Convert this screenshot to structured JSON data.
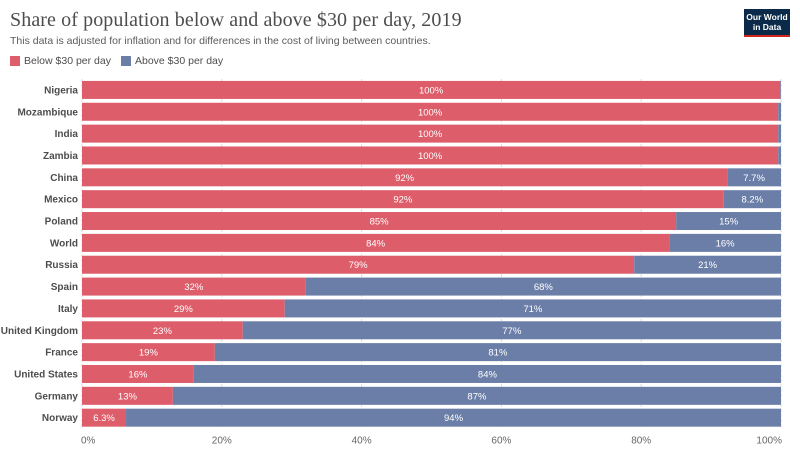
{
  "header": {
    "title": "Share of population below and above $30 per day, 2019",
    "subtitle": "This data is adjusted for inflation and for differences in the cost of living between countries.",
    "logo_line1": "Our World",
    "logo_line2": "in Data"
  },
  "legend": {
    "below_label": "Below $30 per day",
    "above_label": "Above $30 per day"
  },
  "colors": {
    "below": "#dd5d6a",
    "above": "#6b7ea8"
  },
  "chart_data": {
    "type": "bar",
    "orientation": "horizontal",
    "stacked": true,
    "title": "Share of population below and above $30 per day, 2019",
    "categories": [
      "Nigeria",
      "Mozambique",
      "India",
      "Zambia",
      "China",
      "Mexico",
      "Poland",
      "World",
      "Russia",
      "Spain",
      "Italy",
      "United Kingdom",
      "France",
      "United States",
      "Germany",
      "Norway"
    ],
    "series": [
      {
        "name": "Below $30 per day",
        "values": [
          99.9,
          99.6,
          99.6,
          99.6,
          92.3,
          91.8,
          85,
          84,
          79,
          32,
          29,
          23,
          19,
          16,
          13,
          6.3
        ],
        "labels": [
          "100%",
          "100%",
          "100%",
          "100%",
          "92%",
          "92%",
          "85%",
          "84%",
          "79%",
          "32%",
          "29%",
          "23%",
          "19%",
          "16%",
          "13%",
          "6.3%"
        ]
      },
      {
        "name": "Above $30 per day",
        "values": [
          0.1,
          0.4,
          0.4,
          0.4,
          7.7,
          8.2,
          15,
          16,
          21,
          68,
          71,
          77,
          81,
          84,
          87,
          93.7
        ],
        "labels": [
          "",
          "",
          "",
          "",
          "7.7%",
          "8.2%",
          "15%",
          "16%",
          "21%",
          "68%",
          "71%",
          "77%",
          "81%",
          "84%",
          "87%",
          "94%"
        ]
      }
    ],
    "xlim": [
      0,
      100
    ],
    "xticks": [
      "0%",
      "20%",
      "40%",
      "60%",
      "80%",
      "100%"
    ],
    "grid": true,
    "legend_position": "top-left"
  }
}
